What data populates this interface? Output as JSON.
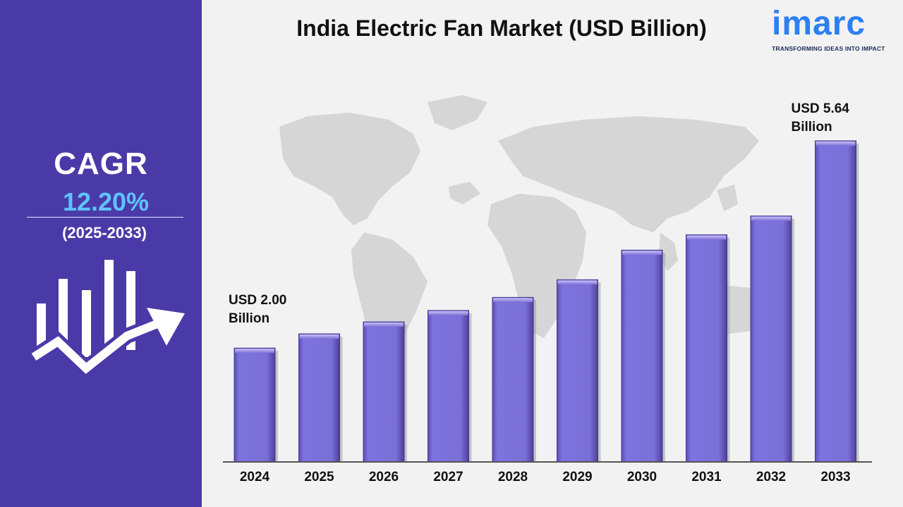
{
  "sidebar": {
    "cagr_label": "CAGR",
    "cagr_value": "12.20%",
    "cagr_period": "(2025-2033)",
    "icon": "growth-chart-icon"
  },
  "header": {
    "title": "India Electric Fan Market (USD Billion)"
  },
  "logo": {
    "wordmark": "imarc",
    "tagline": "TRANSFORMING IDEAS INTO IMPACT"
  },
  "annotations": {
    "first": {
      "line1": "USD 2.00",
      "line2": "Billion"
    },
    "last": {
      "line1": "USD 5.64",
      "line2": "Billion"
    }
  },
  "colors": {
    "sidebar": "#4a3aa8",
    "bar": "#7b6fd8",
    "cagr_value": "#5fc3ff",
    "logo": "#2d7ff2"
  },
  "chart_data": {
    "type": "bar",
    "title": "India Electric Fan Market (USD Billion)",
    "categories": [
      "2024",
      "2025",
      "2026",
      "2027",
      "2028",
      "2029",
      "2030",
      "2031",
      "2032",
      "2033"
    ],
    "values": [
      2.0,
      2.25,
      2.46,
      2.66,
      2.89,
      3.2,
      3.72,
      3.99,
      4.32,
      5.64
    ],
    "ylim": [
      0,
      5.64
    ],
    "grid": false,
    "legend": "none"
  }
}
